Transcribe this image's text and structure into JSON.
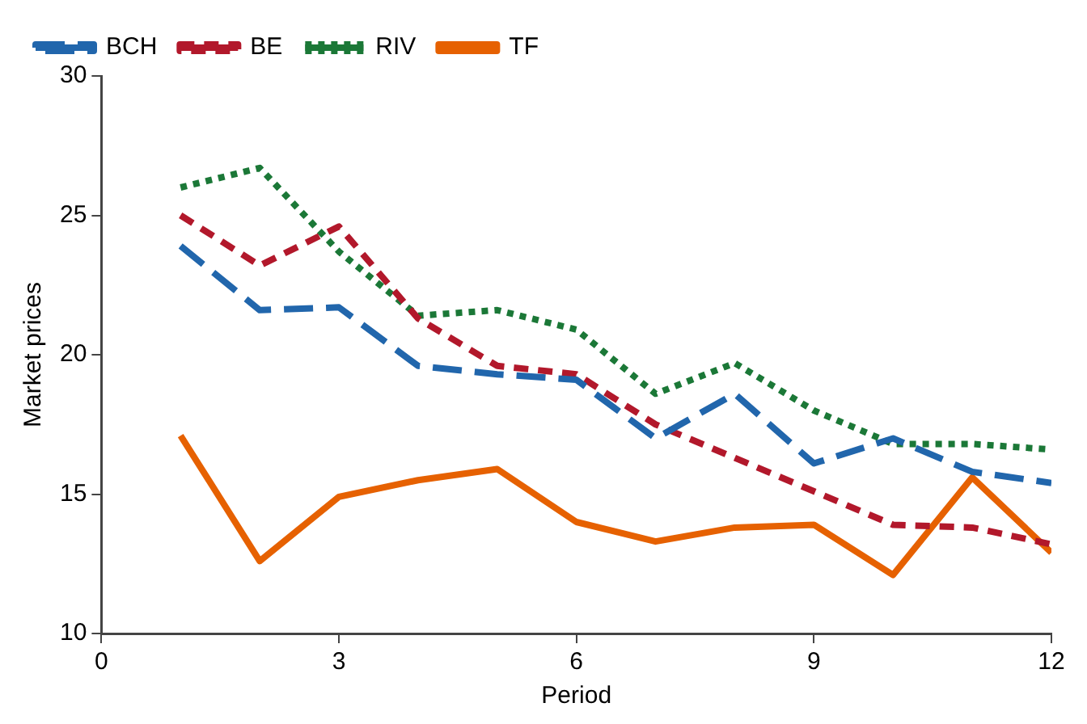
{
  "chart_data": {
    "type": "line",
    "xlabel": "Period",
    "ylabel": "Market prices",
    "x": [
      1,
      2,
      3,
      4,
      5,
      6,
      7,
      8,
      9,
      10,
      11,
      12
    ],
    "xlim": [
      0,
      12
    ],
    "xticks": [
      0,
      3,
      6,
      9,
      12
    ],
    "ylim": [
      10,
      30
    ],
    "yticks": [
      10,
      15,
      20,
      25,
      30
    ],
    "grid": false,
    "legend": "top left",
    "marker": "none",
    "series": [
      {
        "name": "BCH",
        "color": "#2166ac",
        "line_style": "dashed",
        "values": [
          23.9,
          21.6,
          21.7,
          19.6,
          19.3,
          19.1,
          17.0,
          18.6,
          16.1,
          17.0,
          15.8,
          15.4
        ]
      },
      {
        "name": "BE",
        "color": "#b2182b",
        "line_style": "dashed",
        "values": [
          25.0,
          23.2,
          24.6,
          21.3,
          19.6,
          19.3,
          17.5,
          16.3,
          15.1,
          13.9,
          13.8,
          13.2
        ]
      },
      {
        "name": "RIV",
        "color": "#1b7837",
        "line_style": "dotted",
        "values": [
          26.0,
          26.7,
          23.7,
          21.4,
          21.6,
          20.9,
          18.6,
          19.7,
          18.0,
          16.8,
          16.8,
          16.6
        ]
      },
      {
        "name": "TF",
        "color": "#e66101",
        "line_style": "solid",
        "values": [
          17.1,
          12.6,
          14.9,
          15.5,
          15.9,
          14.0,
          13.3,
          13.8,
          13.9,
          12.1,
          15.6,
          12.9
        ]
      }
    ]
  }
}
